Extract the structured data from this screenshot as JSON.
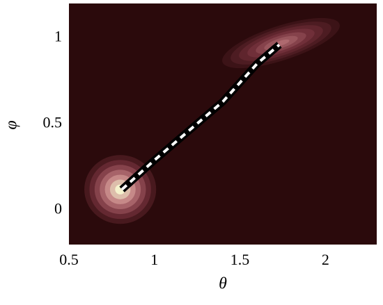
{
  "chart_data": {
    "type": "contour",
    "xlabel": "θ",
    "ylabel": "φ",
    "xlim": [
      0.5,
      2.3
    ],
    "ylim": [
      -0.2,
      1.2
    ],
    "xticks": [
      0.5,
      1,
      1.5,
      2
    ],
    "yticks": [
      0,
      0.5,
      1
    ],
    "background": "#2b0a0c",
    "blobs": [
      {
        "x": 0.8,
        "y": 0.12,
        "rx": 0.21,
        "ry": 0.2,
        "angle": 0,
        "peak": 1
      },
      {
        "x": 1.74,
        "y": 0.97,
        "rx": 0.36,
        "ry": 0.1,
        "angle": -18,
        "peak": 0.6
      }
    ],
    "series": [
      {
        "x": [
          0.81,
          1.0,
          1.2,
          1.4,
          1.6,
          1.73
        ],
        "values": [
          0.12,
          0.29,
          0.46,
          0.63,
          0.85,
          0.96
        ]
      }
    ]
  }
}
